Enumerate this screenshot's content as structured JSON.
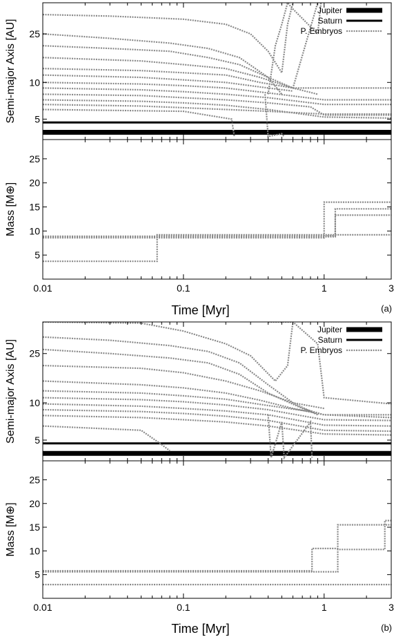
{
  "chart_data": [
    {
      "type": "line",
      "panel_label": "(a)",
      "xlabel": "Time [Myr]",
      "xscale": "log",
      "xlim": [
        0.01,
        3
      ],
      "xticks": [
        0.01,
        0.1,
        1,
        3
      ],
      "xtick_labels": [
        "0.01",
        "0.1",
        "1",
        "3"
      ],
      "grid": false,
      "legend_position": "top-right",
      "colors": {
        "jupiter": "#000000",
        "saturn": "#000000",
        "embryos": "#888888"
      },
      "top": {
        "ylabel": "Semi-major Axis [AU]",
        "yscale": "log",
        "ylim": [
          3.4,
          45
        ],
        "yticks": [
          5,
          10,
          25
        ],
        "ytick_labels": [
          "5",
          "10",
          "25"
        ],
        "legend": [
          "Jupiter",
          "Saturn",
          "P. Embryos"
        ],
        "series": [
          {
            "name": "Jupiter",
            "x": [
              0.01,
              3
            ],
            "y": [
              3.9,
              3.9
            ]
          },
          {
            "name": "Saturn",
            "x": [
              0.01,
              3
            ],
            "y": [
              4.7,
              4.7
            ]
          },
          {
            "x": [
              0.01,
              0.03,
              0.1,
              0.2,
              0.3,
              0.4,
              0.5,
              0.55,
              0.6
            ],
            "y": [
              36,
              35,
              33,
              30,
              25,
              18,
              12,
              30,
              45
            ]
          },
          {
            "x": [
              0.01,
              0.03,
              0.08,
              0.15,
              0.25,
              0.4,
              0.5
            ],
            "y": [
              25,
              23,
              21,
              19,
              16,
              11,
              8
            ]
          },
          {
            "x": [
              0.01,
              0.03,
              0.08,
              0.15,
              0.25,
              0.4,
              0.6,
              0.9
            ],
            "y": [
              20,
              19,
              18,
              16,
              14,
              11,
              9,
              45
            ]
          },
          {
            "x": [
              0.01,
              0.05,
              0.1,
              0.2,
              0.35,
              0.6,
              1,
              3
            ],
            "y": [
              16,
              15,
              14,
              13,
              11,
              9,
              9,
              9
            ]
          },
          {
            "x": [
              0.01,
              0.05,
              0.1,
              0.2,
              0.35,
              0.6,
              0.9
            ],
            "y": [
              13,
              12.5,
              12,
              11.5,
              10,
              9,
              8
            ]
          },
          {
            "x": [
              0.01,
              0.05,
              0.1,
              0.2,
              0.4,
              0.6
            ],
            "y": [
              11.5,
              11,
              10.5,
              10,
              9,
              8.5
            ]
          },
          {
            "x": [
              0.01,
              0.05,
              0.1,
              0.2,
              0.4,
              1,
              3
            ],
            "y": [
              10,
              9.7,
              9.4,
              9,
              8.2,
              7.2,
              7.2
            ]
          },
          {
            "x": [
              0.01,
              0.05,
              0.1,
              0.2,
              0.4,
              1,
              3
            ],
            "y": [
              9,
              8.7,
              8.4,
              8,
              7.5,
              6.6,
              6.6
            ]
          },
          {
            "x": [
              0.01,
              0.05,
              0.1,
              0.2,
              0.4,
              0.8,
              1,
              3
            ],
            "y": [
              8,
              7.8,
              7.5,
              7.2,
              6.8,
              6.3,
              5.4,
              5.4
            ]
          },
          {
            "x": [
              0.01,
              0.05,
              0.1,
              0.2,
              0.4,
              1,
              3
            ],
            "y": [
              7.2,
              7,
              6.8,
              6.5,
              6,
              5.2,
              5.1
            ]
          },
          {
            "x": [
              0.01,
              0.05,
              0.1,
              0.2,
              0.4,
              1,
              3
            ],
            "y": [
              6.6,
              6.4,
              6.2,
              6,
              5.8,
              5.5,
              5.5
            ]
          },
          {
            "x": [
              0.01,
              0.1,
              0.22,
              0.23
            ],
            "y": [
              6,
              5.8,
              5,
              3.6
            ]
          },
          {
            "x": [
              0.4,
              0.45,
              0.5,
              0.55,
              0.6,
              0.9,
              0.95
            ],
            "y": [
              8,
              20,
              30,
              45,
              40,
              25,
              45
            ]
          },
          {
            "x": [
              0.38,
              0.4,
              0.5,
              0.52
            ],
            "y": [
              8,
              3.6,
              3.8,
              3.6
            ]
          }
        ]
      },
      "bottom": {
        "ylabel": "Mass [M⊕]",
        "ylim": [
          0,
          29
        ],
        "yticks": [
          5,
          10,
          15,
          20,
          25
        ],
        "ytick_labels": [
          "5",
          "10",
          "15",
          "20",
          "25"
        ],
        "series": [
          {
            "x": [
              0.01,
              0.06,
              0.065,
              3
            ],
            "y": [
              3.7,
              3.7,
              9.2,
              9.2
            ],
            "step": true
          },
          {
            "x": [
              0.01,
              0.95,
              1.0,
              3
            ],
            "y": [
              8.6,
              8.6,
              16,
              16
            ],
            "step": true
          },
          {
            "x": [
              0.01,
              1.0,
              1.05,
              1.1,
              1.2,
              3
            ],
            "y": [
              8.9,
              8.9,
              9,
              9,
              14.6,
              14.6
            ],
            "step": true
          },
          {
            "x": [
              0.01,
              1.15,
              1.2,
              3
            ],
            "y": [
              8.8,
              8.8,
              13.3,
              13.3
            ],
            "step": true
          }
        ]
      }
    },
    {
      "type": "line",
      "panel_label": "(b)",
      "xlabel": "Time [Myr]",
      "xscale": "log",
      "xlim": [
        0.01,
        3
      ],
      "xticks": [
        0.01,
        0.1,
        1,
        3
      ],
      "xtick_labels": [
        "0.01",
        "0.1",
        "1",
        "3"
      ],
      "grid": false,
      "legend_position": "top-right",
      "colors": {
        "jupiter": "#000000",
        "saturn": "#000000",
        "embryos": "#888888"
      },
      "top": {
        "ylabel": "Semi-major Axis [AU]",
        "yscale": "log",
        "ylim": [
          3.4,
          45
        ],
        "yticks": [
          5,
          10,
          25
        ],
        "ytick_labels": [
          "5",
          "10",
          "25"
        ],
        "legend": [
          "Jupiter",
          "Saturn",
          "P. Embryos"
        ],
        "series": [
          {
            "name": "Jupiter",
            "x": [
              0.01,
              3
            ],
            "y": [
              3.9,
              3.9
            ]
          },
          {
            "name": "Saturn",
            "x": [
              0.01,
              3
            ],
            "y": [
              4.7,
              4.7
            ]
          },
          {
            "x": [
              0.01,
              0.05,
              0.1,
              0.2,
              0.3,
              0.45,
              0.55,
              0.6
            ],
            "y": [
              45,
              44,
              38,
              30,
              24,
              15,
              20,
              45
            ]
          },
          {
            "x": [
              0.01,
              0.03,
              0.08,
              0.15,
              0.25,
              0.4,
              0.6,
              0.9
            ],
            "y": [
              34,
              32,
              29,
              26,
              21,
              14,
              10,
              8
            ]
          },
          {
            "x": [
              0.01,
              0.03,
              0.08,
              0.15,
              0.25,
              0.4,
              0.7,
              1,
              3
            ],
            "y": [
              27,
              25,
              23,
              21,
              17,
              12,
              9,
              8,
              7.6
            ]
          },
          {
            "x": [
              0.01,
              0.05,
              0.1,
              0.2,
              0.35,
              0.6,
              1
            ],
            "y": [
              20,
              19,
              17.5,
              15,
              12.5,
              10,
              9
            ]
          },
          {
            "x": [
              0.01,
              0.05,
              0.1,
              0.2,
              0.35,
              0.6,
              1,
              3
            ],
            "y": [
              15,
              14,
              13.2,
              12,
              10.5,
              9,
              8,
              8
            ]
          },
          {
            "x": [
              0.01,
              0.05,
              0.1,
              0.2,
              0.4,
              0.8
            ],
            "y": [
              12.5,
              12,
              11.4,
              10.7,
              9.5,
              8.5
            ]
          },
          {
            "x": [
              0.01,
              0.05,
              0.1,
              0.2,
              0.4,
              1,
              3
            ],
            "y": [
              11,
              10.6,
              10.2,
              9.6,
              8.8,
              7.3,
              7.2
            ]
          },
          {
            "x": [
              0.01,
              0.05,
              0.1,
              0.2,
              0.4,
              1,
              3
            ],
            "y": [
              9.8,
              9.4,
              9.0,
              8.6,
              8,
              6.6,
              6.5
            ]
          },
          {
            "x": [
              0.01,
              0.05,
              0.1,
              0.2,
              0.4,
              1,
              3
            ],
            "y": [
              8.8,
              8.5,
              8.2,
              7.8,
              7.2,
              6,
              5.9
            ]
          },
          {
            "x": [
              0.01,
              0.05,
              0.1,
              0.2,
              0.4,
              1,
              3
            ],
            "y": [
              7.9,
              7.6,
              7.3,
              7,
              6.5,
              5.6,
              5.5
            ]
          },
          {
            "x": [
              0.01,
              0.05,
              0.07,
              0.08
            ],
            "y": [
              6.5,
              6,
              4.6,
              4.1
            ]
          },
          {
            "x": [
              0.4,
              0.55,
              0.6,
              0.9,
              1.0,
              3
            ],
            "y": [
              45,
              45,
              45,
              30,
              11,
              9.8
            ]
          },
          {
            "x": [
              0.4,
              0.42,
              0.5,
              0.52,
              0.8,
              0.82
            ],
            "y": [
              8,
              3.6,
              7,
              3.6,
              7,
              3.6
            ]
          }
        ]
      },
      "bottom": {
        "ylabel": "Mass [M⊕]",
        "ylim": [
          0,
          29
        ],
        "yticks": [
          5,
          10,
          15,
          20,
          25
        ],
        "ytick_labels": [
          "5",
          "10",
          "15",
          "20",
          "25"
        ],
        "series": [
          {
            "x": [
              0.01,
              3
            ],
            "y": [
              2.9,
              2.9
            ],
            "step": true
          },
          {
            "x": [
              0.01,
              0.8,
              0.82,
              1.2,
              1.25,
              3
            ],
            "y": [
              5.8,
              5.8,
              10.5,
              10.5,
              15.5,
              15.5
            ],
            "step": true
          },
          {
            "x": [
              0.01,
              1.2,
              1.25,
              2.6,
              2.7,
              3
            ],
            "y": [
              5.6,
              5.6,
              10.3,
              10.3,
              16.4,
              16.4
            ],
            "step": true
          }
        ]
      }
    }
  ]
}
